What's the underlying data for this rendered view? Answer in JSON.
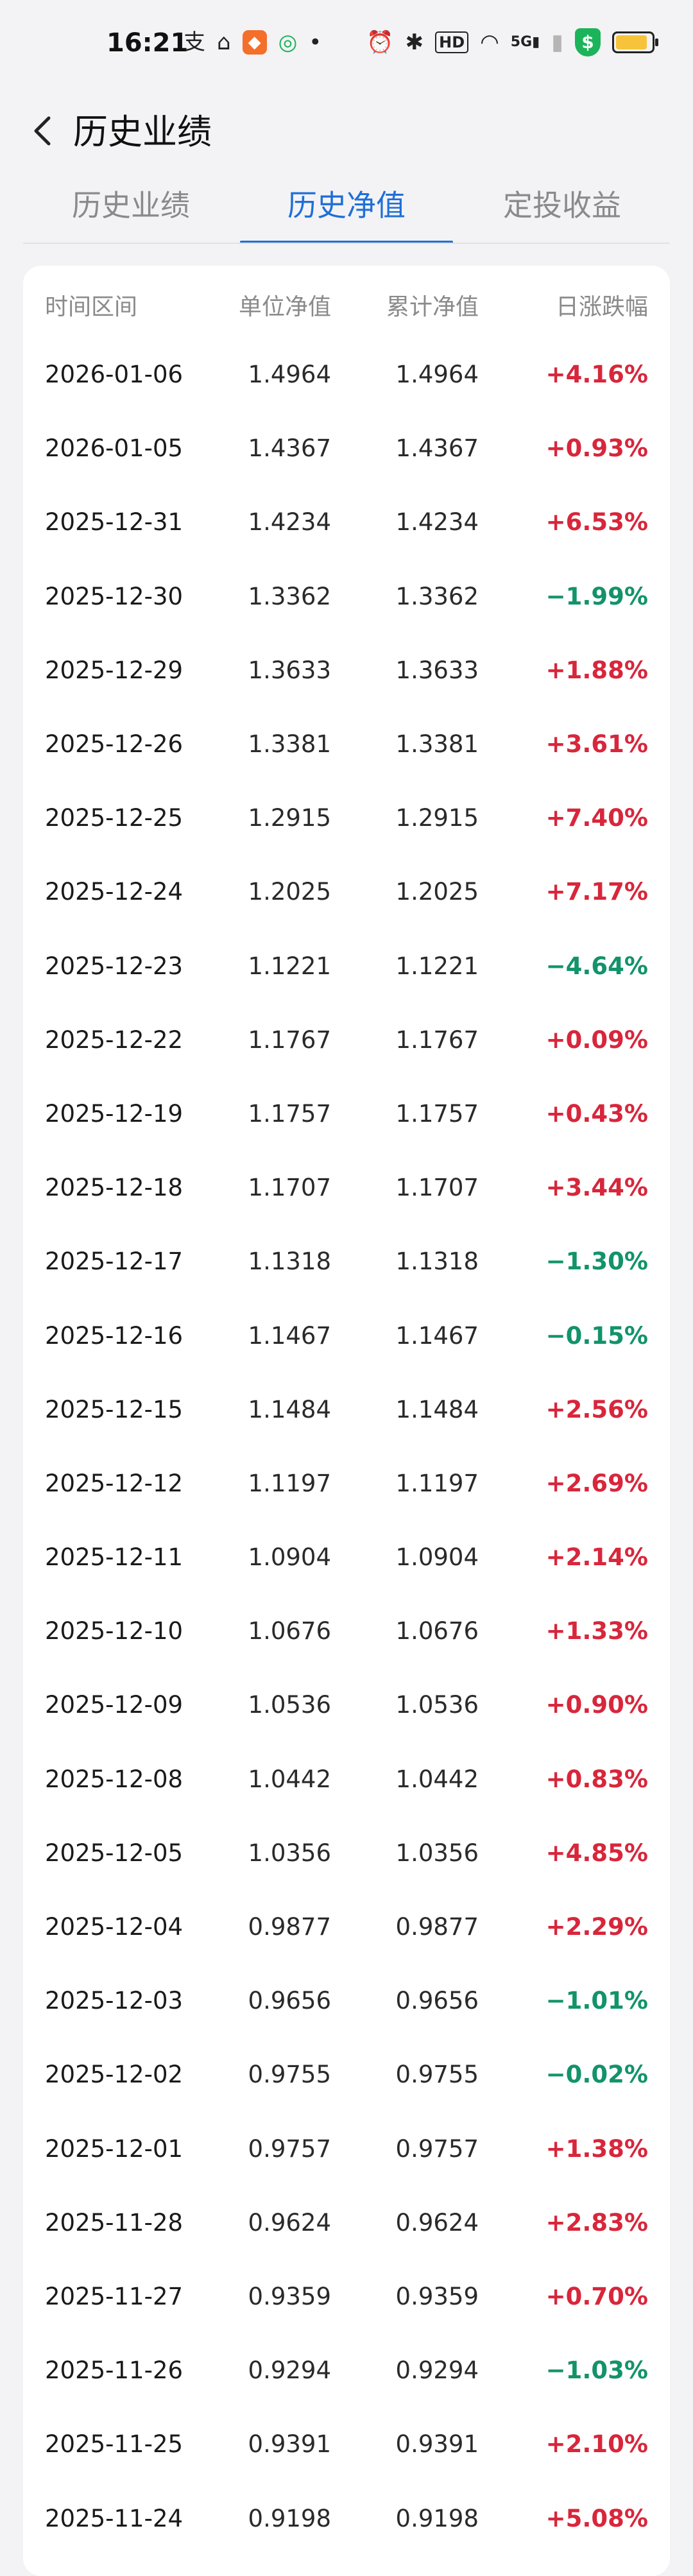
{
  "status_bar": {
    "time": "16:21",
    "icons_left": [
      "alipay-icon",
      "home-icon",
      "orange-app-icon",
      "green-app-icon",
      "dot-icon"
    ],
    "icons_right": [
      "alarm-icon",
      "bluetooth-icon",
      "hd-icon",
      "wifi-icon",
      "signal-5g-icon",
      "signal-icon",
      "shield-dollar-icon",
      "battery-icon"
    ],
    "network_label": "5G",
    "hd_label": "HD",
    "shield_label": "$"
  },
  "header": {
    "title": "历史业绩"
  },
  "tabs": [
    {
      "label": "历史业绩",
      "active": false
    },
    {
      "label": "历史净值",
      "active": true
    },
    {
      "label": "定投收益",
      "active": false
    }
  ],
  "table": {
    "columns": [
      "时间区间",
      "单位净值",
      "累计净值",
      "日涨跌幅"
    ],
    "rows": [
      {
        "date": "2026-01-06",
        "nav": "1.4964",
        "acc": "1.4964",
        "chg": "+4.16%"
      },
      {
        "date": "2026-01-05",
        "nav": "1.4367",
        "acc": "1.4367",
        "chg": "+0.93%"
      },
      {
        "date": "2025-12-31",
        "nav": "1.4234",
        "acc": "1.4234",
        "chg": "+6.53%"
      },
      {
        "date": "2025-12-30",
        "nav": "1.3362",
        "acc": "1.3362",
        "chg": "−1.99%"
      },
      {
        "date": "2025-12-29",
        "nav": "1.3633",
        "acc": "1.3633",
        "chg": "+1.88%"
      },
      {
        "date": "2025-12-26",
        "nav": "1.3381",
        "acc": "1.3381",
        "chg": "+3.61%"
      },
      {
        "date": "2025-12-25",
        "nav": "1.2915",
        "acc": "1.2915",
        "chg": "+7.40%"
      },
      {
        "date": "2025-12-24",
        "nav": "1.2025",
        "acc": "1.2025",
        "chg": "+7.17%"
      },
      {
        "date": "2025-12-23",
        "nav": "1.1221",
        "acc": "1.1221",
        "chg": "−4.64%"
      },
      {
        "date": "2025-12-22",
        "nav": "1.1767",
        "acc": "1.1767",
        "chg": "+0.09%"
      },
      {
        "date": "2025-12-19",
        "nav": "1.1757",
        "acc": "1.1757",
        "chg": "+0.43%"
      },
      {
        "date": "2025-12-18",
        "nav": "1.1707",
        "acc": "1.1707",
        "chg": "+3.44%"
      },
      {
        "date": "2025-12-17",
        "nav": "1.1318",
        "acc": "1.1318",
        "chg": "−1.30%"
      },
      {
        "date": "2025-12-16",
        "nav": "1.1467",
        "acc": "1.1467",
        "chg": "−0.15%"
      },
      {
        "date": "2025-12-15",
        "nav": "1.1484",
        "acc": "1.1484",
        "chg": "+2.56%"
      },
      {
        "date": "2025-12-12",
        "nav": "1.1197",
        "acc": "1.1197",
        "chg": "+2.69%"
      },
      {
        "date": "2025-12-11",
        "nav": "1.0904",
        "acc": "1.0904",
        "chg": "+2.14%"
      },
      {
        "date": "2025-12-10",
        "nav": "1.0676",
        "acc": "1.0676",
        "chg": "+1.33%"
      },
      {
        "date": "2025-12-09",
        "nav": "1.0536",
        "acc": "1.0536",
        "chg": "+0.90%"
      },
      {
        "date": "2025-12-08",
        "nav": "1.0442",
        "acc": "1.0442",
        "chg": "+0.83%"
      },
      {
        "date": "2025-12-05",
        "nav": "1.0356",
        "acc": "1.0356",
        "chg": "+4.85%"
      },
      {
        "date": "2025-12-04",
        "nav": "0.9877",
        "acc": "0.9877",
        "chg": "+2.29%"
      },
      {
        "date": "2025-12-03",
        "nav": "0.9656",
        "acc": "0.9656",
        "chg": "−1.01%"
      },
      {
        "date": "2025-12-02",
        "nav": "0.9755",
        "acc": "0.9755",
        "chg": "−0.02%"
      },
      {
        "date": "2025-12-01",
        "nav": "0.9757",
        "acc": "0.9757",
        "chg": "+1.38%"
      },
      {
        "date": "2025-11-28",
        "nav": "0.9624",
        "acc": "0.9624",
        "chg": "+2.83%"
      },
      {
        "date": "2025-11-27",
        "nav": "0.9359",
        "acc": "0.9359",
        "chg": "+0.70%"
      },
      {
        "date": "2025-11-26",
        "nav": "0.9294",
        "acc": "0.9294",
        "chg": "−1.03%"
      },
      {
        "date": "2025-11-25",
        "nav": "0.9391",
        "acc": "0.9391",
        "chg": "+2.10%"
      },
      {
        "date": "2025-11-24",
        "nav": "0.9198",
        "acc": "0.9198",
        "chg": "+5.08%"
      }
    ]
  },
  "colors": {
    "accent": "#1f6fd8",
    "up": "#d8263b",
    "down": "#12936a",
    "background": "#f3f3f5",
    "card": "#ffffff"
  }
}
